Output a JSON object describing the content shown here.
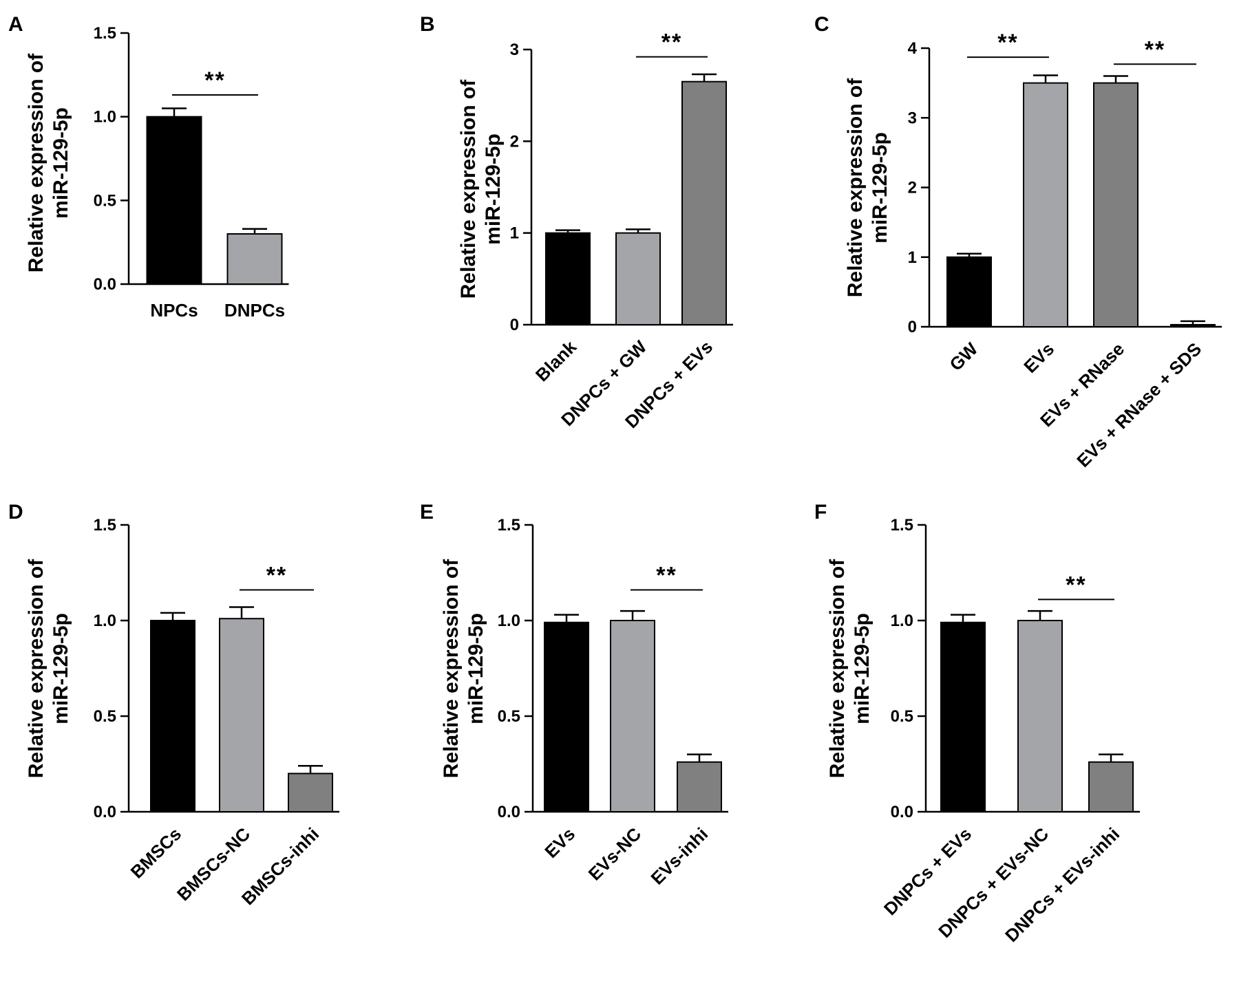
{
  "colors": {
    "black": "#000000",
    "light_gray": "#a3a5a8",
    "dark_gray": "#808080",
    "axis": "#000000"
  },
  "chart_data": [
    {
      "panel": "A",
      "type": "bar",
      "ylabel": [
        "Relative  expression of",
        "miR-129-5p"
      ],
      "ylim": [
        0,
        1.5
      ],
      "yticks": [
        "0.0",
        "0.5",
        "1.0",
        "1.5"
      ],
      "yticks_values": [
        0,
        0.5,
        1.0,
        1.5
      ],
      "categories": [
        "NPCs",
        "DNPCs"
      ],
      "values": [
        1.0,
        0.3
      ],
      "errors": [
        0.05,
        0.03
      ],
      "bar_colors": [
        "black",
        "light_gray"
      ],
      "rotate_labels": false,
      "significance": [
        {
          "from": 0,
          "to": 1,
          "label": "**",
          "y": 1.13
        }
      ]
    },
    {
      "panel": "B",
      "type": "bar",
      "ylabel": [
        "Relative  expression of",
        "miR-129-5p"
      ],
      "ylim": [
        0,
        3
      ],
      "yticks": [
        "0",
        "1",
        "2",
        "3"
      ],
      "yticks_values": [
        0,
        1,
        2,
        3
      ],
      "categories": [
        "Blank",
        "DNPCs + GW",
        "DNPCs + EVs"
      ],
      "values": [
        1.0,
        1.0,
        2.65
      ],
      "errors": [
        0.03,
        0.04,
        0.08
      ],
      "bar_colors": [
        "black",
        "light_gray",
        "dark_gray"
      ],
      "rotate_labels": true,
      "significance": [
        {
          "from": 1,
          "to": 2,
          "label": "**",
          "y": 2.92
        }
      ]
    },
    {
      "panel": "C",
      "type": "bar",
      "ylabel": [
        "Relative  expression of",
        "miR-129-5p"
      ],
      "ylim": [
        0,
        4
      ],
      "yticks": [
        "0",
        "1",
        "2",
        "3",
        "4"
      ],
      "yticks_values": [
        0,
        1,
        2,
        3,
        4
      ],
      "categories": [
        "GW",
        "EVs",
        "EVs + RNase",
        "EVs + RNase + SDS"
      ],
      "values": [
        1.0,
        3.5,
        3.5,
        0.03
      ],
      "errors": [
        0.05,
        0.11,
        0.1,
        0.05
      ],
      "bar_colors": [
        "black",
        "light_gray",
        "dark_gray",
        "black"
      ],
      "rotate_labels": true,
      "significance": [
        {
          "from": 0,
          "to": 1,
          "label": "**",
          "y": 3.87
        },
        {
          "from": 2,
          "to": 3,
          "label": "**",
          "y": 3.77
        }
      ]
    },
    {
      "panel": "D",
      "type": "bar",
      "ylabel": [
        "Relative  expression of",
        "miR-129-5p"
      ],
      "ylim": [
        0,
        1.5
      ],
      "yticks": [
        "0.0",
        "0.5",
        "1.0",
        "1.5"
      ],
      "yticks_values": [
        0,
        0.5,
        1.0,
        1.5
      ],
      "categories": [
        "BMSCs",
        "BMSCs-NC",
        "BMSCs-inhi"
      ],
      "values": [
        1.0,
        1.01,
        0.2
      ],
      "errors": [
        0.04,
        0.06,
        0.04
      ],
      "bar_colors": [
        "black",
        "light_gray",
        "dark_gray"
      ],
      "rotate_labels": true,
      "significance": [
        {
          "from": 1,
          "to": 2,
          "label": "**",
          "y": 1.16
        }
      ]
    },
    {
      "panel": "E",
      "type": "bar",
      "ylabel": [
        "Relative  expression of",
        "miR-129-5p"
      ],
      "ylim": [
        0,
        1.5
      ],
      "yticks": [
        "0.0",
        "0.5",
        "1.0",
        "1.5"
      ],
      "yticks_values": [
        0,
        0.5,
        1.0,
        1.5
      ],
      "categories": [
        "EVs",
        "EVs-NC",
        "EVs-inhi"
      ],
      "values": [
        0.99,
        1.0,
        0.26
      ],
      "errors": [
        0.04,
        0.05,
        0.04
      ],
      "bar_colors": [
        "black",
        "light_gray",
        "dark_gray"
      ],
      "rotate_labels": true,
      "significance": [
        {
          "from": 1,
          "to": 2,
          "label": "**",
          "y": 1.16
        }
      ]
    },
    {
      "panel": "F",
      "type": "bar",
      "ylabel": [
        "Relative  expression of",
        "miR-129-5p"
      ],
      "ylim": [
        0,
        1.5
      ],
      "yticks": [
        "0.0",
        "0.5",
        "1.0",
        "1.5"
      ],
      "yticks_values": [
        0,
        0.5,
        1.0,
        1.5
      ],
      "categories": [
        "DNPCs + EVs",
        "DNPCs + EVs-NC",
        "DNPCs + EVs-inhi"
      ],
      "values": [
        0.99,
        1.0,
        0.26
      ],
      "errors": [
        0.04,
        0.05,
        0.04
      ],
      "bar_colors": [
        "black",
        "light_gray",
        "dark_gray"
      ],
      "rotate_labels": true,
      "significance": [
        {
          "from": 1,
          "to": 2,
          "label": "**",
          "y": 1.11
        }
      ]
    }
  ]
}
